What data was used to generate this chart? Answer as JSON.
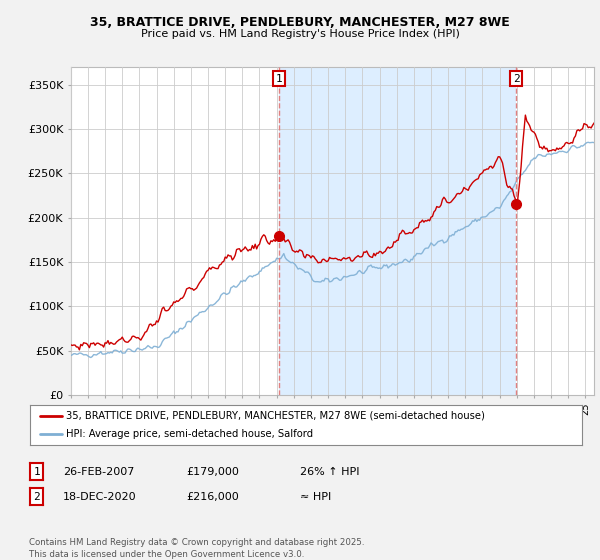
{
  "title_line1": "35, BRATTICE DRIVE, PENDLEBURY, MANCHESTER, M27 8WE",
  "title_line2": "Price paid vs. HM Land Registry's House Price Index (HPI)",
  "legend_line1": "35, BRATTICE DRIVE, PENDLEBURY, MANCHESTER, M27 8WE (semi-detached house)",
  "legend_line2": "HPI: Average price, semi-detached house, Salford",
  "annotation1_label": "1",
  "annotation1_date": "26-FEB-2007",
  "annotation1_price": "£179,000",
  "annotation1_hpi": "26% ↑ HPI",
  "annotation2_label": "2",
  "annotation2_date": "18-DEC-2020",
  "annotation2_price": "£216,000",
  "annotation2_hpi": "≈ HPI",
  "footer": "Contains HM Land Registry data © Crown copyright and database right 2025.\nThis data is licensed under the Open Government Licence v3.0.",
  "red_color": "#cc0000",
  "blue_color": "#7fafd4",
  "shade_color": "#ddeeff",
  "vline_color": "#e08080",
  "background_color": "#f2f2f2",
  "plot_bg_color": "#ffffff",
  "grid_color": "#cccccc",
  "ylim": [
    0,
    370000
  ],
  "yticks": [
    0,
    50000,
    100000,
    150000,
    200000,
    250000,
    300000,
    350000
  ],
  "ytick_labels": [
    "£0",
    "£50K",
    "£100K",
    "£150K",
    "£200K",
    "£250K",
    "£300K",
    "£350K"
  ],
  "sale1_x": 2007.13,
  "sale1_y": 179000,
  "sale2_x": 2020.96,
  "sale2_y": 216000,
  "xmin": 1995.0,
  "xmax": 2025.5
}
